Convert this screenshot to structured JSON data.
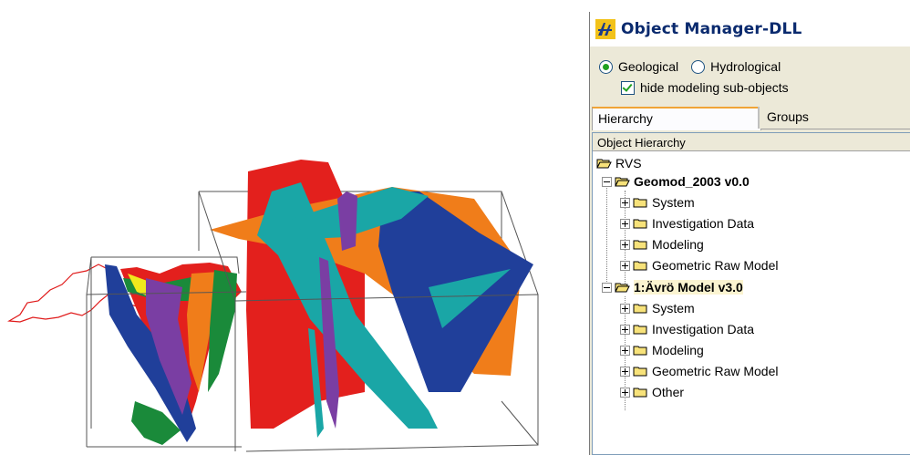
{
  "window": {
    "title": "Object Manager-DLL"
  },
  "options": {
    "radio_geological": "Geological",
    "radio_hydrological": "Hydrological",
    "selected": "Geological",
    "checkbox_hide": "hide modeling sub-objects",
    "checkbox_checked": true
  },
  "tabs": {
    "hierarchy": "Hierarchy",
    "groups": "Groups"
  },
  "panel": {
    "header": "Object Hierarchy"
  },
  "tree": {
    "root": "RVS",
    "model1": {
      "label": "Geomod_2003  v0.0",
      "children": [
        "System",
        "Investigation Data",
        "Modeling",
        "Geometric Raw Model"
      ]
    },
    "model2": {
      "label": "1:Ävrö Model  v3.0",
      "children": [
        "System",
        "Investigation Data",
        "Modeling",
        "Geometric Raw Model",
        "Other"
      ]
    }
  },
  "colors": {
    "title_text": "#0a2a6e",
    "window_bg": "#ece9d8",
    "tab_accent": "#f0a436",
    "folder_fill": "#f7e27a",
    "model_red": "#e3201d",
    "model_orange": "#f07d1a",
    "model_teal": "#1aa6a6",
    "model_blue": "#203f9a",
    "model_purple": "#7a3ea3",
    "model_green": "#1a8a3a",
    "model_yellow": "#f0e81c"
  }
}
